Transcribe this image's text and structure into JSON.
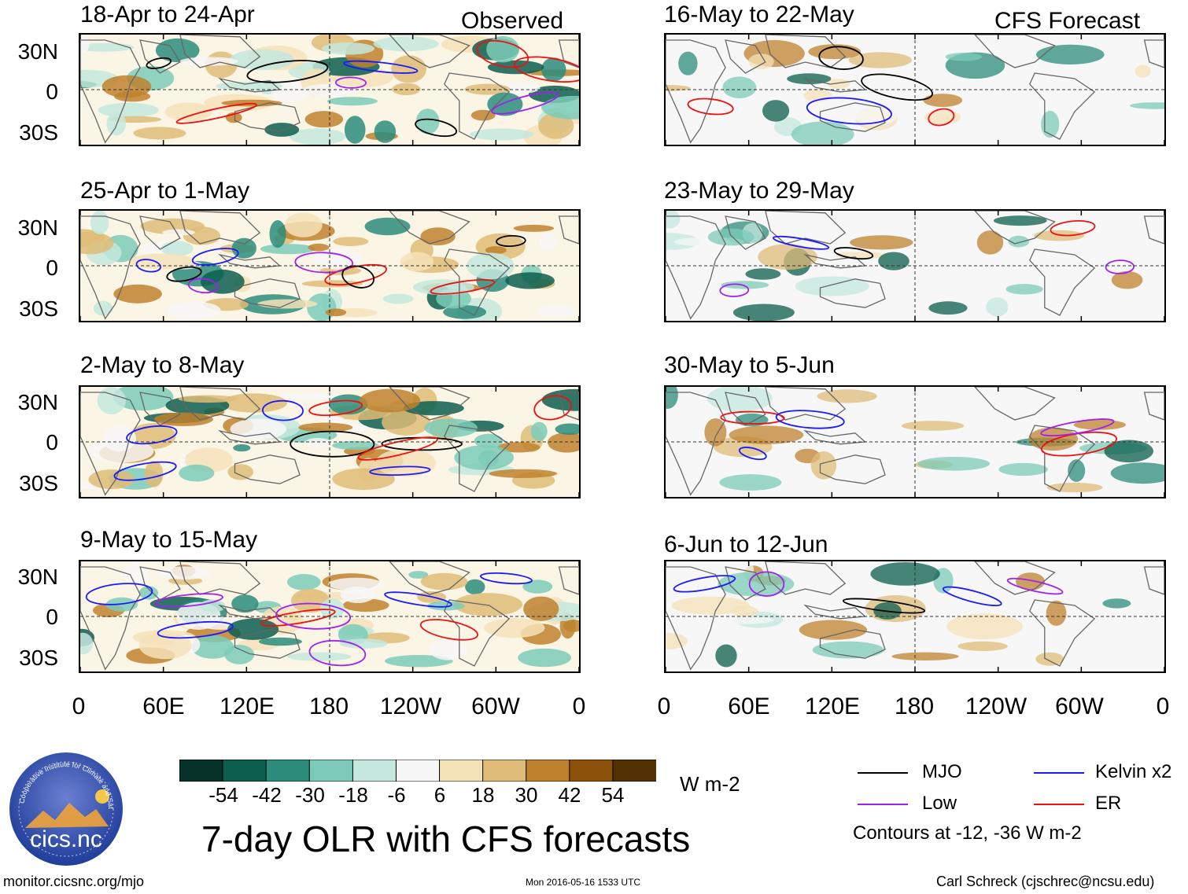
{
  "observed_label": "Observed",
  "forecast_label": "CFS Forecast",
  "lat_labels": [
    "30N",
    "0",
    "30S"
  ],
  "lon_labels": [
    "0",
    "60E",
    "120E",
    "180",
    "120W",
    "60W",
    "0"
  ],
  "panels": [
    {
      "title": "18-Apr to 24-Apr"
    },
    {
      "title": "25-Apr to 1-May"
    },
    {
      "title": "2-May to 8-May"
    },
    {
      "title": "9-May to 15-May"
    },
    {
      "title": "16-May to 22-May"
    },
    {
      "title": "23-May to 29-May"
    },
    {
      "title": "30-May to 5-Jun"
    },
    {
      "title": "6-Jun to 12-Jun"
    }
  ],
  "colorbar": {
    "ticks": [
      "-54",
      "-42",
      "-30",
      "-18",
      "-6",
      "6",
      "18",
      "30",
      "42",
      "54"
    ],
    "colors": [
      "#06322a",
      "#0c5e4e",
      "#2b8c7b",
      "#7ccbb8",
      "#c4e8dd",
      "#f7f7f7",
      "#f4e2b8",
      "#dfbc77",
      "#bf812d",
      "#8c510a",
      "#543005"
    ],
    "units": "W m-2"
  },
  "legend": {
    "items": [
      {
        "label": "MJO",
        "color": "#000000"
      },
      {
        "label": "Kelvin x2",
        "color": "#1a1aff"
      },
      {
        "label": "Low",
        "color": "#a020f0"
      },
      {
        "label": "ER",
        "color": "#ee1111"
      }
    ],
    "note": "Contours at -12, -36 W m-2"
  },
  "main_title": "7-day OLR with CFS forecasts",
  "logo_text": "cics.nc",
  "logo_ring_text": "Cooperative Institute for Climate and Satellites",
  "footer": {
    "url": "monitor.cicsnc.org/mjo",
    "timestamp": "Mon 2016-05-16 1533 UTC",
    "credit": "Carl Schreck (cjschrec@ncsu.edu)"
  }
}
